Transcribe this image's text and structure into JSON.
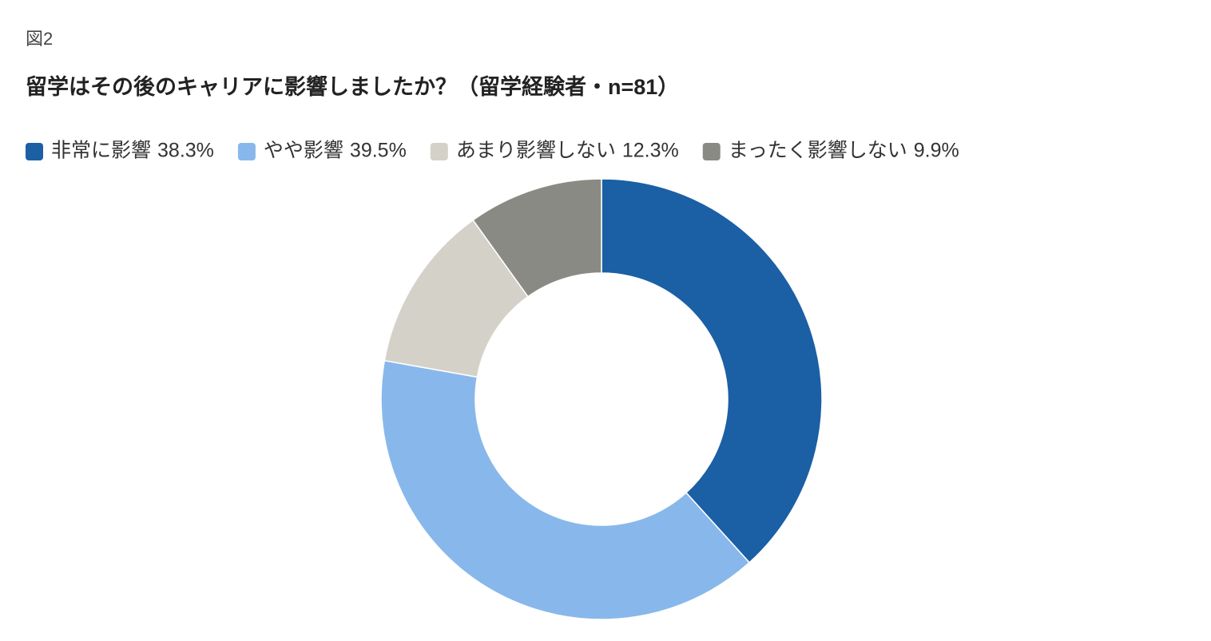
{
  "chart_data": {
    "type": "donut",
    "figure_label": "図2",
    "title": "留学はその後のキャリアに影響しましたか？（留学経験者・n=81）",
    "categories": [
      "非常に影響",
      "やや影響",
      "あまり影響しない",
      "まったく影響しない"
    ],
    "values": [
      38.3,
      39.5,
      12.3,
      9.9
    ],
    "value_labels": [
      "38.3%",
      "39.5%",
      "12.3%",
      "9.9%"
    ],
    "colors": [
      "#1b5fa5",
      "#88b8eb",
      "#d4d2c8",
      "#8a8a84"
    ],
    "legend": "top-left"
  }
}
